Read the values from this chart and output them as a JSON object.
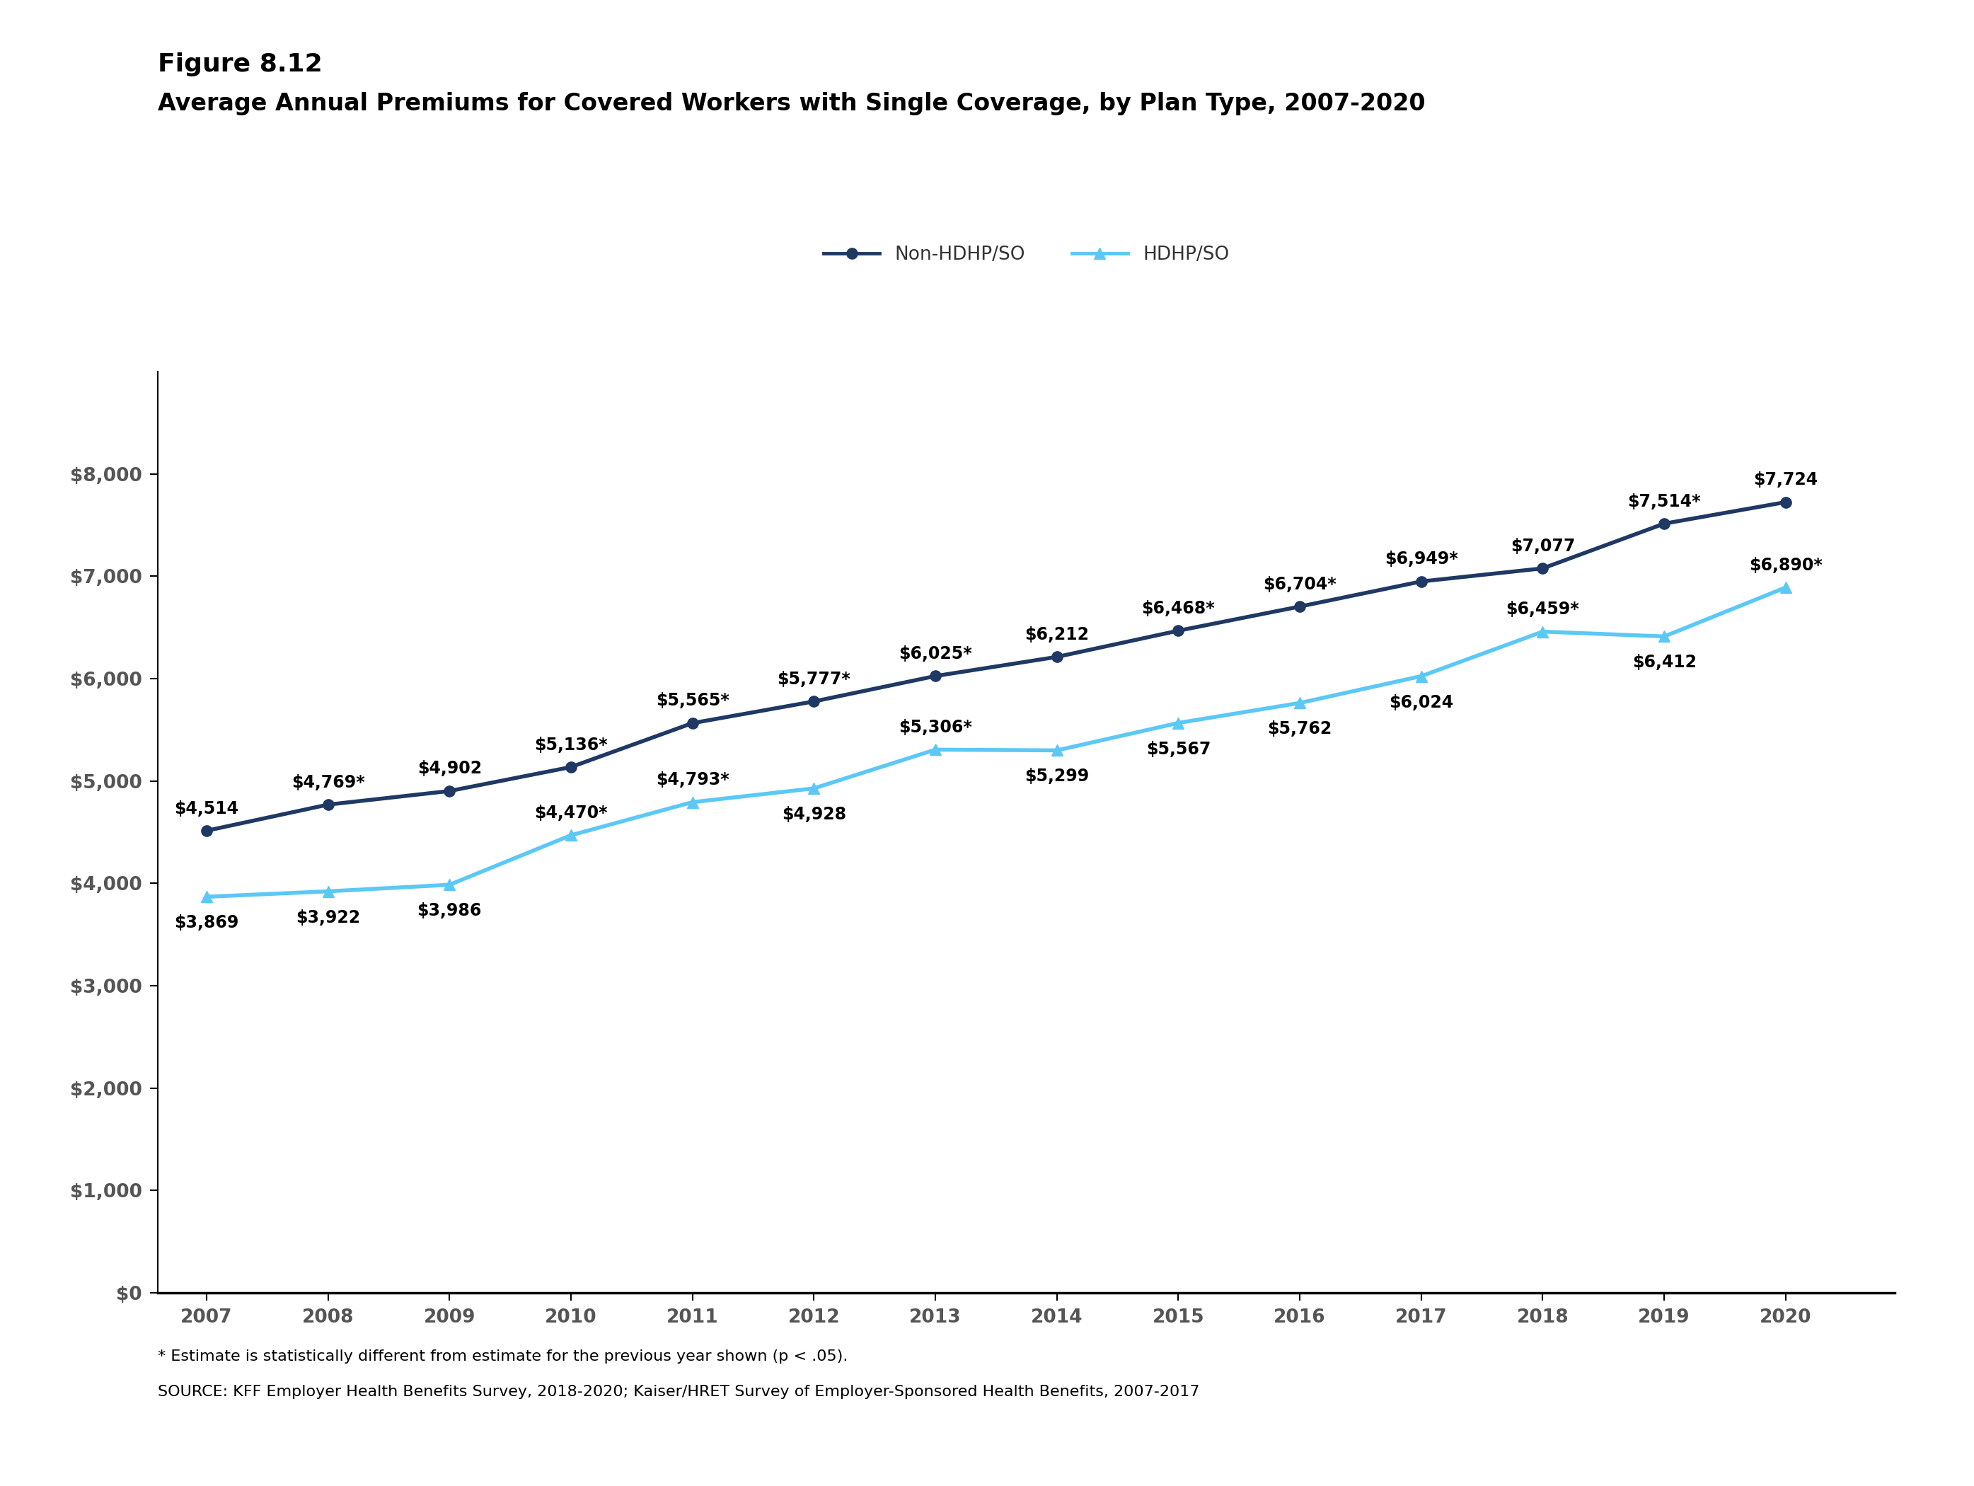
{
  "years": [
    2007,
    2008,
    2009,
    2010,
    2011,
    2012,
    2013,
    2014,
    2015,
    2016,
    2017,
    2018,
    2019,
    2020
  ],
  "non_hdhp": [
    4514,
    4769,
    4902,
    5136,
    5565,
    5777,
    6025,
    6212,
    6468,
    6704,
    6949,
    7077,
    7514,
    7724
  ],
  "hdhp": [
    3869,
    3922,
    3986,
    4470,
    4793,
    4928,
    5306,
    5299,
    5567,
    5762,
    6024,
    6459,
    6412,
    6890
  ],
  "non_hdhp_labels": [
    "$4,514",
    "$4,769*",
    "$4,902",
    "$5,136*",
    "$5,565*",
    "$5,777*",
    "$6,025*",
    "$6,212",
    "$6,468*",
    "$6,704*",
    "$6,949*",
    "$7,077",
    "$7,514*",
    "$7,724"
  ],
  "hdhp_labels": [
    "$3,869",
    "$3,922",
    "$3,986",
    "$4,470*",
    "$4,793*",
    "$4,928",
    "$5,306*",
    "$5,299",
    "$5,567",
    "$5,762",
    "$6,024",
    "$6,459*",
    "$6,412",
    "$6,890*"
  ],
  "non_hdhp_color": "#1f3864",
  "hdhp_color": "#5bc8f5",
  "title_line1": "Figure 8.12",
  "title_line2": "Average Annual Premiums for Covered Workers with Single Coverage, by Plan Type, 2007-2020",
  "legend_non_hdhp": "Non-HDHP/SO",
  "legend_hdhp": "HDHP/SO",
  "footnote1": "* Estimate is statistically different from estimate for the previous year shown (p < .05).",
  "footnote2": "SOURCE: KFF Employer Health Benefits Survey, 2018-2020; Kaiser/HRET Survey of Employer-Sponsored Health Benefits, 2007-2017",
  "ylim": [
    0,
    9000
  ],
  "yticks": [
    0,
    1000,
    2000,
    3000,
    4000,
    5000,
    6000,
    7000,
    8000
  ],
  "ytick_labels": [
    "$0",
    "$1,000",
    "$2,000",
    "$3,000",
    "$4,000",
    "$5,000",
    "$6,000",
    "$7,000",
    "$8,000"
  ],
  "background_color": "#ffffff",
  "hdhp_above": [
    false,
    false,
    false,
    true,
    true,
    false,
    true,
    false,
    false,
    false,
    false,
    true,
    false,
    true
  ]
}
